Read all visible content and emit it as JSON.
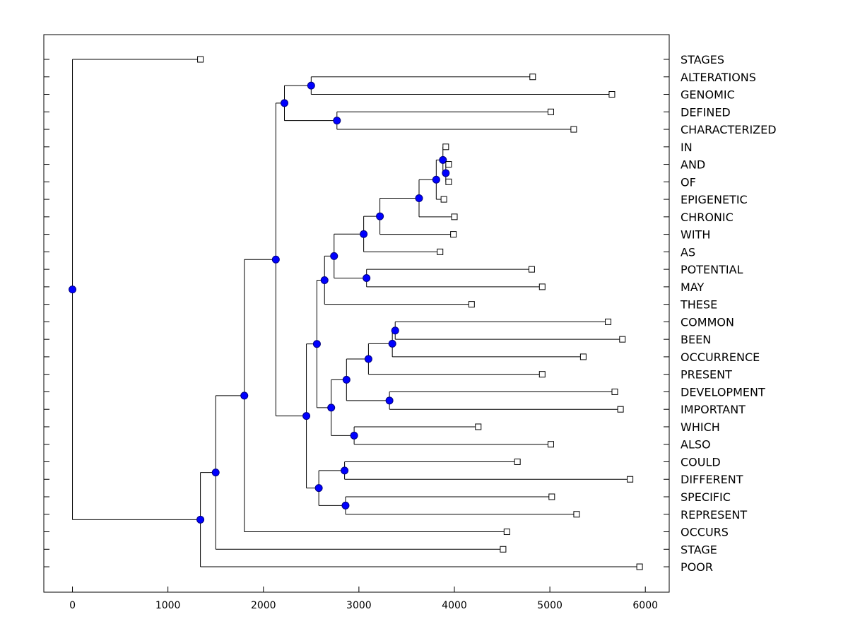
{
  "chart_data": {
    "type": "dendrogram",
    "orientation": "horizontal",
    "xlim": [
      -300,
      6250
    ],
    "x_ticks": [
      0,
      1000,
      2000,
      3000,
      4000,
      5000,
      6000
    ],
    "x_tick_labels": [
      "0",
      "1000",
      "2000",
      "3000",
      "4000",
      "5000",
      "6000"
    ],
    "labels": [
      "STAGES",
      "ALTERATIONS",
      "GENOMIC",
      "DEFINED",
      "CHARACTERIZED",
      "IN",
      "AND",
      "OF",
      "EPIGENETIC",
      "CHRONIC",
      "WITH",
      "AS",
      "POTENTIAL",
      "MAY",
      "THESE",
      "COMMON",
      "BEEN",
      "OCCURRENCE",
      "PRESENT",
      "DEVELOPMENT",
      "IMPORTANT",
      "WHICH",
      "ALSO",
      "COULD",
      "DIFFERENT",
      "SPECIFIC",
      "REPRESENT",
      "OCCURS",
      "STAGE",
      "POOR"
    ],
    "leaf_values": {
      "STAGES": 1340,
      "ALTERATIONS": 4820,
      "GENOMIC": 5650,
      "DEFINED": 5010,
      "CHARACTERIZED": 5250,
      "IN": 3910,
      "AND": 3940,
      "OF": 3940,
      "EPIGENETIC": 3890,
      "CHRONIC": 4000,
      "WITH": 3990,
      "AS": 3850,
      "POTENTIAL": 4810,
      "MAY": 4920,
      "THESE": 4180,
      "COMMON": 5610,
      "BEEN": 5760,
      "OCCURRENCE": 5350,
      "PRESENT": 4920,
      "DEVELOPMENT": 5680,
      "IMPORTANT": 5740,
      "WHICH": 4250,
      "ALSO": 5010,
      "COULD": 4660,
      "DIFFERENT": 5840,
      "SPECIFIC": 5020,
      "REPRESENT": 5280,
      "OCCURS": 4550,
      "STAGE": 4510,
      "POOR": 5940
    },
    "tree": {
      "x": 0,
      "children": [
        {
          "leaf": "STAGES"
        },
        {
          "x": 1340,
          "children": [
            {
              "x": 1500,
              "children": [
                {
                  "x": 1800,
                  "children": [
                    {
                      "x": 2130,
                      "children": [
                        {
                          "x": 2220,
                          "children": [
                            {
                              "x": 2500,
                              "children": [
                                {
                                  "leaf": "ALTERATIONS"
                                },
                                {
                                  "leaf": "GENOMIC"
                                }
                              ]
                            },
                            {
                              "x": 2770,
                              "children": [
                                {
                                  "leaf": "DEFINED"
                                },
                                {
                                  "leaf": "CHARACTERIZED"
                                }
                              ]
                            }
                          ]
                        },
                        {
                          "x": 2450,
                          "children": [
                            {
                              "x": 2560,
                              "children": [
                                {
                                  "x": 2640,
                                  "children": [
                                    {
                                      "x": 2740,
                                      "children": [
                                        {
                                          "x": 3050,
                                          "children": [
                                            {
                                              "x": 3220,
                                              "children": [
                                                {
                                                  "x": 3630,
                                                  "children": [
                                                    {
                                                      "x": 3810,
                                                      "children": [
                                                        {
                                                          "x": 3880,
                                                          "children": [
                                                            {
                                                              "leaf": "IN"
                                                            },
                                                            {
                                                              "x": 3910,
                                                              "children": [
                                                                {
                                                                  "leaf": "AND"
                                                                },
                                                                {
                                                                  "leaf": "OF"
                                                                }
                                                              ]
                                                            }
                                                          ]
                                                        },
                                                        {
                                                          "leaf": "EPIGENETIC"
                                                        }
                                                      ]
                                                    },
                                                    {
                                                      "leaf": "CHRONIC"
                                                    }
                                                  ]
                                                },
                                                {
                                                  "leaf": "WITH"
                                                }
                                              ]
                                            },
                                            {
                                              "leaf": "AS"
                                            }
                                          ]
                                        },
                                        {
                                          "x": 3080,
                                          "children": [
                                            {
                                              "leaf": "POTENTIAL"
                                            },
                                            {
                                              "leaf": "MAY"
                                            }
                                          ]
                                        }
                                      ]
                                    },
                                    {
                                      "leaf": "THESE"
                                    }
                                  ]
                                },
                                {
                                  "x": 2710,
                                  "children": [
                                    {
                                      "x": 2870,
                                      "children": [
                                        {
                                          "x": 3100,
                                          "children": [
                                            {
                                              "x": 3350,
                                              "children": [
                                                {
                                                  "x": 3380,
                                                  "children": [
                                                    {
                                                      "leaf": "COMMON"
                                                    },
                                                    {
                                                      "leaf": "BEEN"
                                                    }
                                                  ]
                                                },
                                                {
                                                  "leaf": "OCCURRENCE"
                                                }
                                              ]
                                            },
                                            {
                                              "leaf": "PRESENT"
                                            }
                                          ]
                                        },
                                        {
                                          "x": 3320,
                                          "children": [
                                            {
                                              "leaf": "DEVELOPMENT"
                                            },
                                            {
                                              "leaf": "IMPORTANT"
                                            }
                                          ]
                                        }
                                      ]
                                    },
                                    {
                                      "x": 2950,
                                      "children": [
                                        {
                                          "leaf": "WHICH"
                                        },
                                        {
                                          "leaf": "ALSO"
                                        }
                                      ]
                                    }
                                  ]
                                }
                              ]
                            },
                            {
                              "x": 2580,
                              "children": [
                                {
                                  "x": 2850,
                                  "children": [
                                    {
                                      "leaf": "COULD"
                                    },
                                    {
                                      "leaf": "DIFFERENT"
                                    }
                                  ]
                                },
                                {
                                  "x": 2860,
                                  "children": [
                                    {
                                      "leaf": "SPECIFIC"
                                    },
                                    {
                                      "leaf": "REPRESENT"
                                    }
                                  ]
                                }
                              ]
                            }
                          ]
                        }
                      ]
                    },
                    {
                      "leaf": "OCCURS"
                    }
                  ]
                },
                {
                  "leaf": "STAGE"
                }
              ]
            },
            {
              "leaf": "POOR"
            }
          ]
        }
      ]
    }
  },
  "colors": {
    "node_fill": "#0000ff",
    "node_stroke": "#000080",
    "line": "#000000",
    "leaf_marker_fill": "#ffffff",
    "background": "#ffffff"
  }
}
